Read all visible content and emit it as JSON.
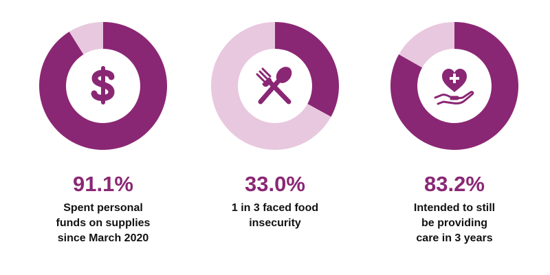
{
  "colors": {
    "primary": "#8a2774",
    "light": "#e8c8df",
    "center": "#ffffff"
  },
  "chart_data": {
    "type": "pie",
    "variant": "donut",
    "stats": [
      {
        "value": 91.1,
        "value_label": "91.1%",
        "caption_lines": [
          "Spent personal",
          "funds on supplies",
          "since March 2020"
        ],
        "icon": "dollar-icon"
      },
      {
        "value": 33.0,
        "value_label": "33.0%",
        "caption_lines": [
          "1 in 3 faced food",
          "insecurity"
        ],
        "icon": "fork-spoon-icon"
      },
      {
        "value": 83.2,
        "value_label": "83.2%",
        "caption_lines": [
          "Intended to still",
          "be providing",
          "care in 3 years"
        ],
        "icon": "heart-hand-icon"
      }
    ]
  }
}
